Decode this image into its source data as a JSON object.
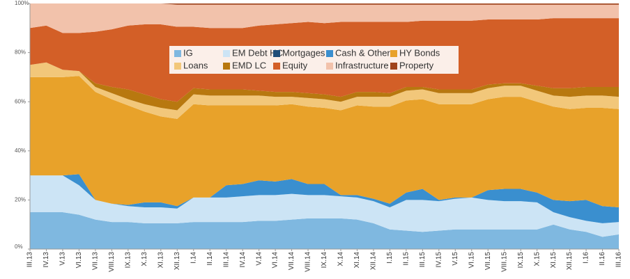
{
  "chart_data": {
    "type": "stacked-area",
    "categories": [
      "III.13",
      "IV.13",
      "V.13",
      "VI.13",
      "VII.13",
      "VIII.13",
      "IX.13",
      "X.13",
      "XI.13",
      "XII.13",
      "I.14",
      "II.14",
      "III.14",
      "IV.14",
      "V.14",
      "VI.14",
      "VII.14",
      "VIII.14",
      "IX.14",
      "X.14",
      "XI.14",
      "XII.14",
      "I.15",
      "II.15",
      "III.15",
      "IV.15",
      "V.15",
      "VI.15",
      "VII.15",
      "VIII.15",
      "IX.15",
      "X.15",
      "XI.15",
      "XII.15",
      "I.16",
      "II.16",
      "III.16"
    ],
    "series": [
      {
        "name": "IG",
        "color": "#7fb8e0",
        "values": [
          15,
          15,
          15,
          14,
          12,
          11,
          11,
          10.5,
          10.5,
          10.5,
          11,
          11,
          11,
          11,
          11.5,
          11.5,
          12,
          12.5,
          12.5,
          12.5,
          12,
          10.5,
          8,
          7.5,
          7,
          7.5,
          8,
          8,
          8,
          8,
          8,
          8,
          10,
          8,
          7,
          5,
          6
        ]
      },
      {
        "name": "EM Debt HC",
        "color": "#cce4f5",
        "values": [
          15,
          15,
          15,
          12,
          8,
          7.5,
          6.5,
          6.5,
          6.5,
          6,
          10,
          10,
          10,
          10.5,
          10.5,
          10.5,
          10.5,
          9.5,
          9.5,
          9,
          9,
          9,
          9,
          12.5,
          13,
          12,
          12.5,
          13,
          12,
          11.5,
          11.5,
          11,
          5,
          5,
          4.5,
          5.5,
          5
        ]
      },
      {
        "name": "Mortgages",
        "color": "#1f4e79",
        "values": [
          0,
          0,
          0,
          0,
          0,
          0,
          0,
          0,
          0,
          0,
          0,
          0,
          0,
          0,
          0,
          0,
          0,
          0,
          0,
          0,
          0,
          0,
          0,
          0,
          0,
          0,
          0,
          0,
          0,
          0,
          0,
          0,
          0,
          0,
          0,
          0,
          0
        ]
      },
      {
        "name": "Cash & Other",
        "color": "#3a8fcf",
        "values": [
          0,
          0,
          0,
          4.5,
          0,
          0,
          0.5,
          2,
          2,
          1,
          0,
          0,
          5,
          5,
          6,
          5.5,
          6,
          4.5,
          4.5,
          0.5,
          1,
          1,
          1.5,
          3,
          4.5,
          0.5,
          0.5,
          0,
          4,
          5,
          5,
          4,
          5,
          6.5,
          8.5,
          7,
          6
        ]
      },
      {
        "name": "HY Bonds",
        "color": "#e8a22a",
        "values": [
          40,
          40,
          40,
          40,
          44,
          42.5,
          40.5,
          37,
          35,
          35.5,
          38,
          37.5,
          32.5,
          32,
          30.5,
          31,
          30.5,
          31.5,
          31,
          34.5,
          36.5,
          37.5,
          39.5,
          37.5,
          36.5,
          39,
          38,
          38,
          37,
          37.5,
          37.5,
          37,
          38,
          37.5,
          37.5,
          40,
          40
        ]
      },
      {
        "name": "Loans",
        "color": "#f2c77a",
        "values": [
          5,
          6,
          3,
          2,
          2,
          2.5,
          2.5,
          3,
          3.5,
          3.5,
          4,
          4,
          4,
          4,
          4,
          3.5,
          3,
          3.5,
          3.5,
          3.5,
          3.5,
          4,
          4,
          4,
          4,
          4.5,
          4.5,
          4.5,
          4.5,
          4.5,
          4.5,
          4.5,
          4.5,
          5,
          5,
          5,
          5
        ]
      },
      {
        "name": "EMD LC",
        "color": "#b8780f",
        "values": [
          0,
          0,
          0,
          0,
          1.5,
          2.5,
          4,
          4,
          3.5,
          3.5,
          2.5,
          2.5,
          2.5,
          2.5,
          2,
          2,
          2,
          2,
          2,
          2,
          2,
          2,
          1.5,
          1.5,
          1,
          1.5,
          1.5,
          1.5,
          1.5,
          1,
          1,
          2,
          3,
          3.5,
          3.5,
          3.5,
          4
        ]
      },
      {
        "name": "Equity",
        "color": "#d35f27",
        "values": [
          15,
          15,
          15,
          15.5,
          21,
          23.5,
          26,
          28.5,
          30.5,
          30.5,
          25,
          25,
          25,
          25,
          26.5,
          27.5,
          28,
          29,
          29,
          30.5,
          28.5,
          28.5,
          29,
          26.5,
          27,
          28,
          28,
          28,
          26.5,
          26,
          26,
          27,
          28.5,
          28.5,
          28,
          28,
          28
        ]
      },
      {
        "name": "Infrastructure",
        "color": "#f2c2ab",
        "values": [
          10,
          9,
          12,
          12,
          11.5,
          10.5,
          9,
          8.5,
          8.5,
          9,
          9,
          9.5,
          9.5,
          9.5,
          8.5,
          8,
          7.5,
          7,
          7.5,
          7,
          7,
          7,
          7,
          7,
          6.5,
          6.5,
          6.5,
          6.5,
          6,
          6,
          6,
          6,
          5.5,
          5.5,
          5.5,
          5.5,
          5.5
        ]
      },
      {
        "name": "Property",
        "color": "#a0441c",
        "values": [
          0,
          0,
          0,
          0,
          0,
          0,
          0,
          0,
          0,
          0.5,
          0.5,
          0.5,
          0.5,
          0.5,
          0.5,
          0.5,
          0.5,
          0.5,
          0.5,
          0.5,
          0.5,
          0.5,
          0.5,
          0.5,
          0.5,
          0.5,
          0.5,
          0.5,
          0.5,
          0.5,
          0.5,
          0.5,
          0.5,
          0.5,
          0.5,
          0.5,
          0.5
        ]
      }
    ],
    "ylim": [
      0,
      100
    ],
    "yticks": [
      {
        "value": 0,
        "label": "0%"
      },
      {
        "value": 20,
        "label": "20%"
      },
      {
        "value": 40,
        "label": "40%"
      },
      {
        "value": 60,
        "label": "60%"
      },
      {
        "value": 80,
        "label": "80%"
      },
      {
        "value": 100,
        "label": "100%"
      }
    ],
    "legend": "top"
  }
}
